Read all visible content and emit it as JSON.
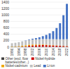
{
  "chart_data": {
    "type": "bar",
    "stacked": true,
    "grid": true,
    "legend": "bottom",
    "categories": [
      "1990",
      null,
      "1994",
      null,
      "1998",
      null,
      "2002",
      null,
      "2006",
      null,
      "2010",
      null,
      "2014",
      null,
      "2018",
      null,
      "2022"
    ],
    "series": [
      {
        "name": "Other (excl. flow\nbatteries/other...)",
        "color": "#404040",
        "values": [
          5,
          5,
          5,
          5,
          5,
          5,
          5,
          5,
          5,
          5,
          5,
          5,
          5,
          5,
          5,
          5,
          5
        ]
      },
      {
        "name": "Nickel-hydride",
        "color": "#cc0000",
        "values": [
          0,
          2,
          5,
          10,
          20,
          35,
          45,
          50,
          55,
          58,
          55,
          50,
          45,
          40,
          35,
          30,
          25
        ]
      },
      {
        "name": "Nickel-cadmium",
        "color": "#f0a800",
        "values": [
          15,
          18,
          22,
          28,
          32,
          35,
          30,
          25,
          20,
          18,
          15,
          13,
          11,
          9,
          8,
          7,
          6
        ]
      },
      {
        "name": "Lead",
        "color": "#c0c0c0",
        "values": [
          100,
          110,
          120,
          130,
          140,
          150,
          155,
          160,
          165,
          170,
          175,
          180,
          185,
          190,
          195,
          200,
          210
        ]
      },
      {
        "name": "Li-ion",
        "color": "#4472c4",
        "values": [
          0,
          0,
          1,
          3,
          8,
          15,
          25,
          40,
          60,
          90,
          130,
          180,
          250,
          350,
          500,
          750,
          1100
        ]
      }
    ],
    "ylim": [
      0,
      1400
    ],
    "yticks": [
      0,
      200,
      400,
      600,
      800,
      1000,
      1200,
      1400
    ]
  }
}
